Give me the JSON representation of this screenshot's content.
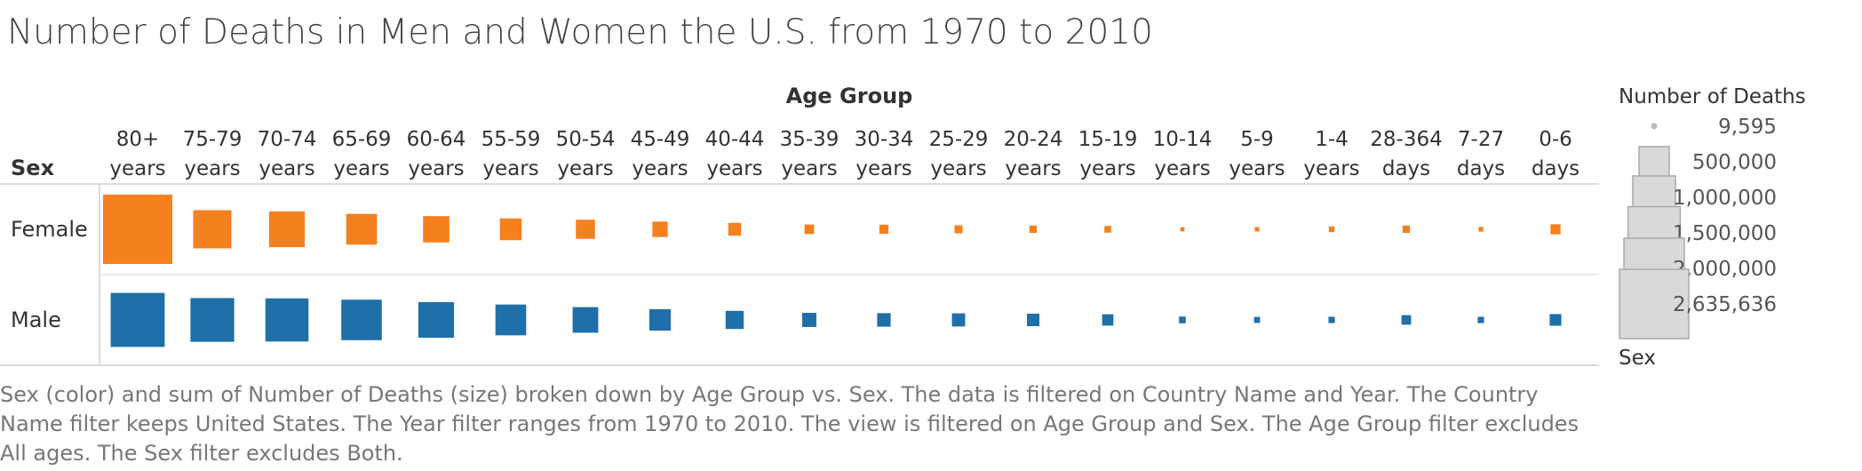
{
  "title": "Number of Deaths in Men and Women the U.S. from 1970 to 2010",
  "caption": "Sex (color) and sum of Number of Deaths (size) broken down by Age Group vs. Sex. The data is filtered on Country Name and Year. The Country Name filter keeps United States. The Year filter ranges from 1970 to 2010. The view is filtered on Age Group and Sex. The Age Group filter excludes All ages. The Sex filter excludes Both.",
  "chart_data": {
    "type": "heatmap",
    "column_header": "Age Group",
    "row_header": "Sex",
    "categories": [
      [
        "80+",
        "years"
      ],
      [
        "75-79",
        "years"
      ],
      [
        "70-74",
        "years"
      ],
      [
        "65-69",
        "years"
      ],
      [
        "60-64",
        "years"
      ],
      [
        "55-59",
        "years"
      ],
      [
        "50-54",
        "years"
      ],
      [
        "45-49",
        "years"
      ],
      [
        "40-44",
        "years"
      ],
      [
        "35-39",
        "years"
      ],
      [
        "30-34",
        "years"
      ],
      [
        "25-29",
        "years"
      ],
      [
        "20-24",
        "years"
      ],
      [
        "15-19",
        "years"
      ],
      [
        "10-14",
        "years"
      ],
      [
        "5-9",
        "years"
      ],
      [
        "1-4",
        "years"
      ],
      [
        "28-364",
        "days"
      ],
      [
        "7-27",
        "days"
      ],
      [
        "0-6",
        "days"
      ]
    ],
    "series": [
      {
        "name": "Female",
        "color": "#f5801e",
        "values": [
          2635636,
          800000,
          700000,
          520000,
          380000,
          260000,
          200000,
          130000,
          90000,
          50000,
          45000,
          35000,
          30000,
          25000,
          9595,
          11000,
          18000,
          30000,
          12000,
          55000
        ]
      },
      {
        "name": "Male",
        "color": "#1f6fa8",
        "values": [
          1600000,
          1050000,
          1020000,
          900000,
          700000,
          520000,
          360000,
          250000,
          180000,
          110000,
          100000,
          95000,
          85000,
          70000,
          25000,
          20000,
          22000,
          50000,
          22000,
          75000
        ]
      }
    ],
    "size_legend": {
      "title": "Number of Deaths",
      "values": [
        9595,
        500000,
        1000000,
        1500000,
        2000000,
        2635636
      ],
      "labels": [
        "9,595",
        "500,000",
        "1,000,000",
        "1,500,000",
        "2,000,000",
        "2,635,636"
      ]
    },
    "color_legend": {
      "title": "Sex",
      "entries": [
        {
          "label": "Female",
          "color": "#f5801e"
        },
        {
          "label": "Male",
          "color": "#1f6fa8"
        }
      ]
    }
  }
}
